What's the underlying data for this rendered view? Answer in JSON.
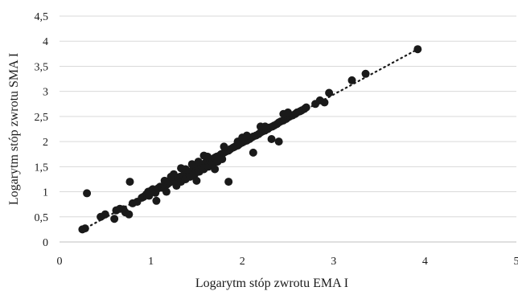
{
  "chart_data": {
    "type": "scatter",
    "xlabel": "Logarytm stóp zwrotu EMA I",
    "ylabel": "Logarytm stóp zwrotu SMA I",
    "xlim": [
      0,
      5
    ],
    "ylim": [
      0,
      4.5
    ],
    "x_ticks": [
      0,
      1,
      2,
      3,
      4,
      5
    ],
    "x_tick_labels": [
      "0",
      "1",
      "2",
      "3",
      "4",
      "5"
    ],
    "y_ticks": [
      0,
      0.5,
      1,
      1.5,
      2,
      2.5,
      3,
      3.5,
      4,
      4.5
    ],
    "y_tick_labels": [
      "0",
      "0,5",
      "1",
      "1,5",
      "2",
      "2,5",
      "3",
      "3,5",
      "4",
      "4,5"
    ],
    "grid": "horizontal",
    "marker_color": "#1a1a1a",
    "trendline": {
      "style": "dotted",
      "x": [
        0.25,
        3.92
      ],
      "y": [
        0.24,
        3.84
      ]
    },
    "series": [
      {
        "points": [
          [
            0.25,
            0.25
          ],
          [
            0.28,
            0.27
          ],
          [
            0.3,
            0.97
          ],
          [
            0.45,
            0.5
          ],
          [
            0.5,
            0.55
          ],
          [
            0.6,
            0.46
          ],
          [
            0.62,
            0.63
          ],
          [
            0.66,
            0.66
          ],
          [
            0.7,
            0.65
          ],
          [
            0.72,
            0.59
          ],
          [
            0.76,
            0.55
          ],
          [
            0.8,
            0.77
          ],
          [
            0.85,
            0.8
          ],
          [
            0.77,
            1.2
          ],
          [
            0.9,
            0.88
          ],
          [
            0.92,
            0.9
          ],
          [
            0.95,
            0.95
          ],
          [
            0.97,
            1.0
          ],
          [
            0.98,
            0.92
          ],
          [
            1.0,
            1.02
          ],
          [
            1.02,
            1.05
          ],
          [
            1.04,
            1.0
          ],
          [
            1.05,
            0.98
          ],
          [
            1.06,
            0.82
          ],
          [
            1.08,
            1.07
          ],
          [
            1.1,
            1.1
          ],
          [
            1.12,
            1.08
          ],
          [
            1.15,
            1.12
          ],
          [
            1.17,
            1.0
          ],
          [
            1.18,
            1.15
          ],
          [
            1.2,
            1.18
          ],
          [
            1.22,
            1.2
          ],
          [
            1.25,
            1.25
          ],
          [
            1.27,
            1.22
          ],
          [
            1.28,
            1.12
          ],
          [
            1.3,
            1.28
          ],
          [
            1.32,
            1.3
          ],
          [
            1.33,
            1.2
          ],
          [
            1.35,
            1.32
          ],
          [
            1.37,
            1.35
          ],
          [
            1.38,
            1.25
          ],
          [
            1.4,
            1.38
          ],
          [
            1.42,
            1.4
          ],
          [
            1.43,
            1.3
          ],
          [
            1.45,
            1.42
          ],
          [
            1.47,
            1.45
          ],
          [
            1.48,
            1.35
          ],
          [
            1.5,
            1.48
          ],
          [
            1.52,
            1.5
          ],
          [
            1.53,
            1.4
          ],
          [
            1.55,
            1.52
          ],
          [
            1.57,
            1.55
          ],
          [
            1.58,
            1.45
          ],
          [
            1.6,
            1.58
          ],
          [
            1.62,
            1.6
          ],
          [
            1.63,
            1.5
          ],
          [
            1.65,
            1.62
          ],
          [
            1.67,
            1.65
          ],
          [
            1.68,
            1.55
          ],
          [
            1.7,
            1.68
          ],
          [
            1.72,
            1.7
          ],
          [
            1.73,
            1.6
          ],
          [
            1.75,
            1.72
          ],
          [
            1.77,
            1.75
          ],
          [
            1.78,
            1.65
          ],
          [
            1.8,
            1.78
          ],
          [
            1.82,
            1.8
          ],
          [
            1.85,
            1.82
          ],
          [
            1.87,
            1.85
          ],
          [
            1.9,
            1.88
          ],
          [
            1.92,
            1.9
          ],
          [
            1.95,
            1.92
          ],
          [
            1.97,
            1.95
          ],
          [
            2.0,
            1.98
          ],
          [
            2.02,
            2.0
          ],
          [
            2.05,
            2.02
          ],
          [
            2.08,
            2.05
          ],
          [
            2.1,
            2.08
          ],
          [
            2.12,
            2.1
          ],
          [
            2.15,
            2.12
          ],
          [
            2.18,
            2.15
          ],
          [
            2.2,
            2.18
          ],
          [
            2.22,
            2.2
          ],
          [
            2.25,
            2.22
          ],
          [
            2.28,
            2.25
          ],
          [
            2.3,
            2.28
          ],
          [
            2.33,
            2.3
          ],
          [
            2.35,
            2.32
          ],
          [
            2.38,
            2.35
          ],
          [
            2.4,
            2.38
          ],
          [
            2.42,
            2.4
          ],
          [
            2.45,
            2.42
          ],
          [
            2.48,
            2.45
          ],
          [
            2.5,
            2.48
          ],
          [
            2.52,
            2.5
          ],
          [
            2.55,
            2.52
          ],
          [
            2.58,
            2.55
          ],
          [
            2.6,
            2.58
          ],
          [
            2.63,
            2.6
          ],
          [
            2.65,
            2.62
          ],
          [
            2.68,
            2.65
          ],
          [
            2.7,
            2.68
          ],
          [
            2.32,
            2.05
          ],
          [
            2.4,
            2.0
          ],
          [
            2.12,
            1.78
          ],
          [
            1.85,
            1.2
          ],
          [
            1.5,
            1.22
          ],
          [
            1.33,
            1.47
          ],
          [
            1.25,
            1.35
          ],
          [
            1.58,
            1.72
          ],
          [
            1.7,
            1.45
          ],
          [
            1.45,
            1.55
          ],
          [
            2.05,
            2.12
          ],
          [
            1.95,
            2.0
          ],
          [
            2.5,
            2.58
          ],
          [
            2.2,
            2.3
          ],
          [
            2.8,
            2.75
          ],
          [
            2.85,
            2.82
          ],
          [
            2.9,
            2.78
          ],
          [
            2.95,
            2.97
          ],
          [
            3.2,
            3.22
          ],
          [
            3.35,
            3.35
          ],
          [
            3.92,
            3.84
          ],
          [
            1.15,
            1.22
          ],
          [
            1.38,
            1.45
          ],
          [
            1.62,
            1.7
          ],
          [
            1.8,
            1.9
          ],
          [
            2.0,
            2.08
          ],
          [
            2.25,
            2.3
          ],
          [
            2.45,
            2.55
          ],
          [
            1.52,
            1.6
          ],
          [
            1.22,
            1.3
          ]
        ]
      }
    ]
  }
}
